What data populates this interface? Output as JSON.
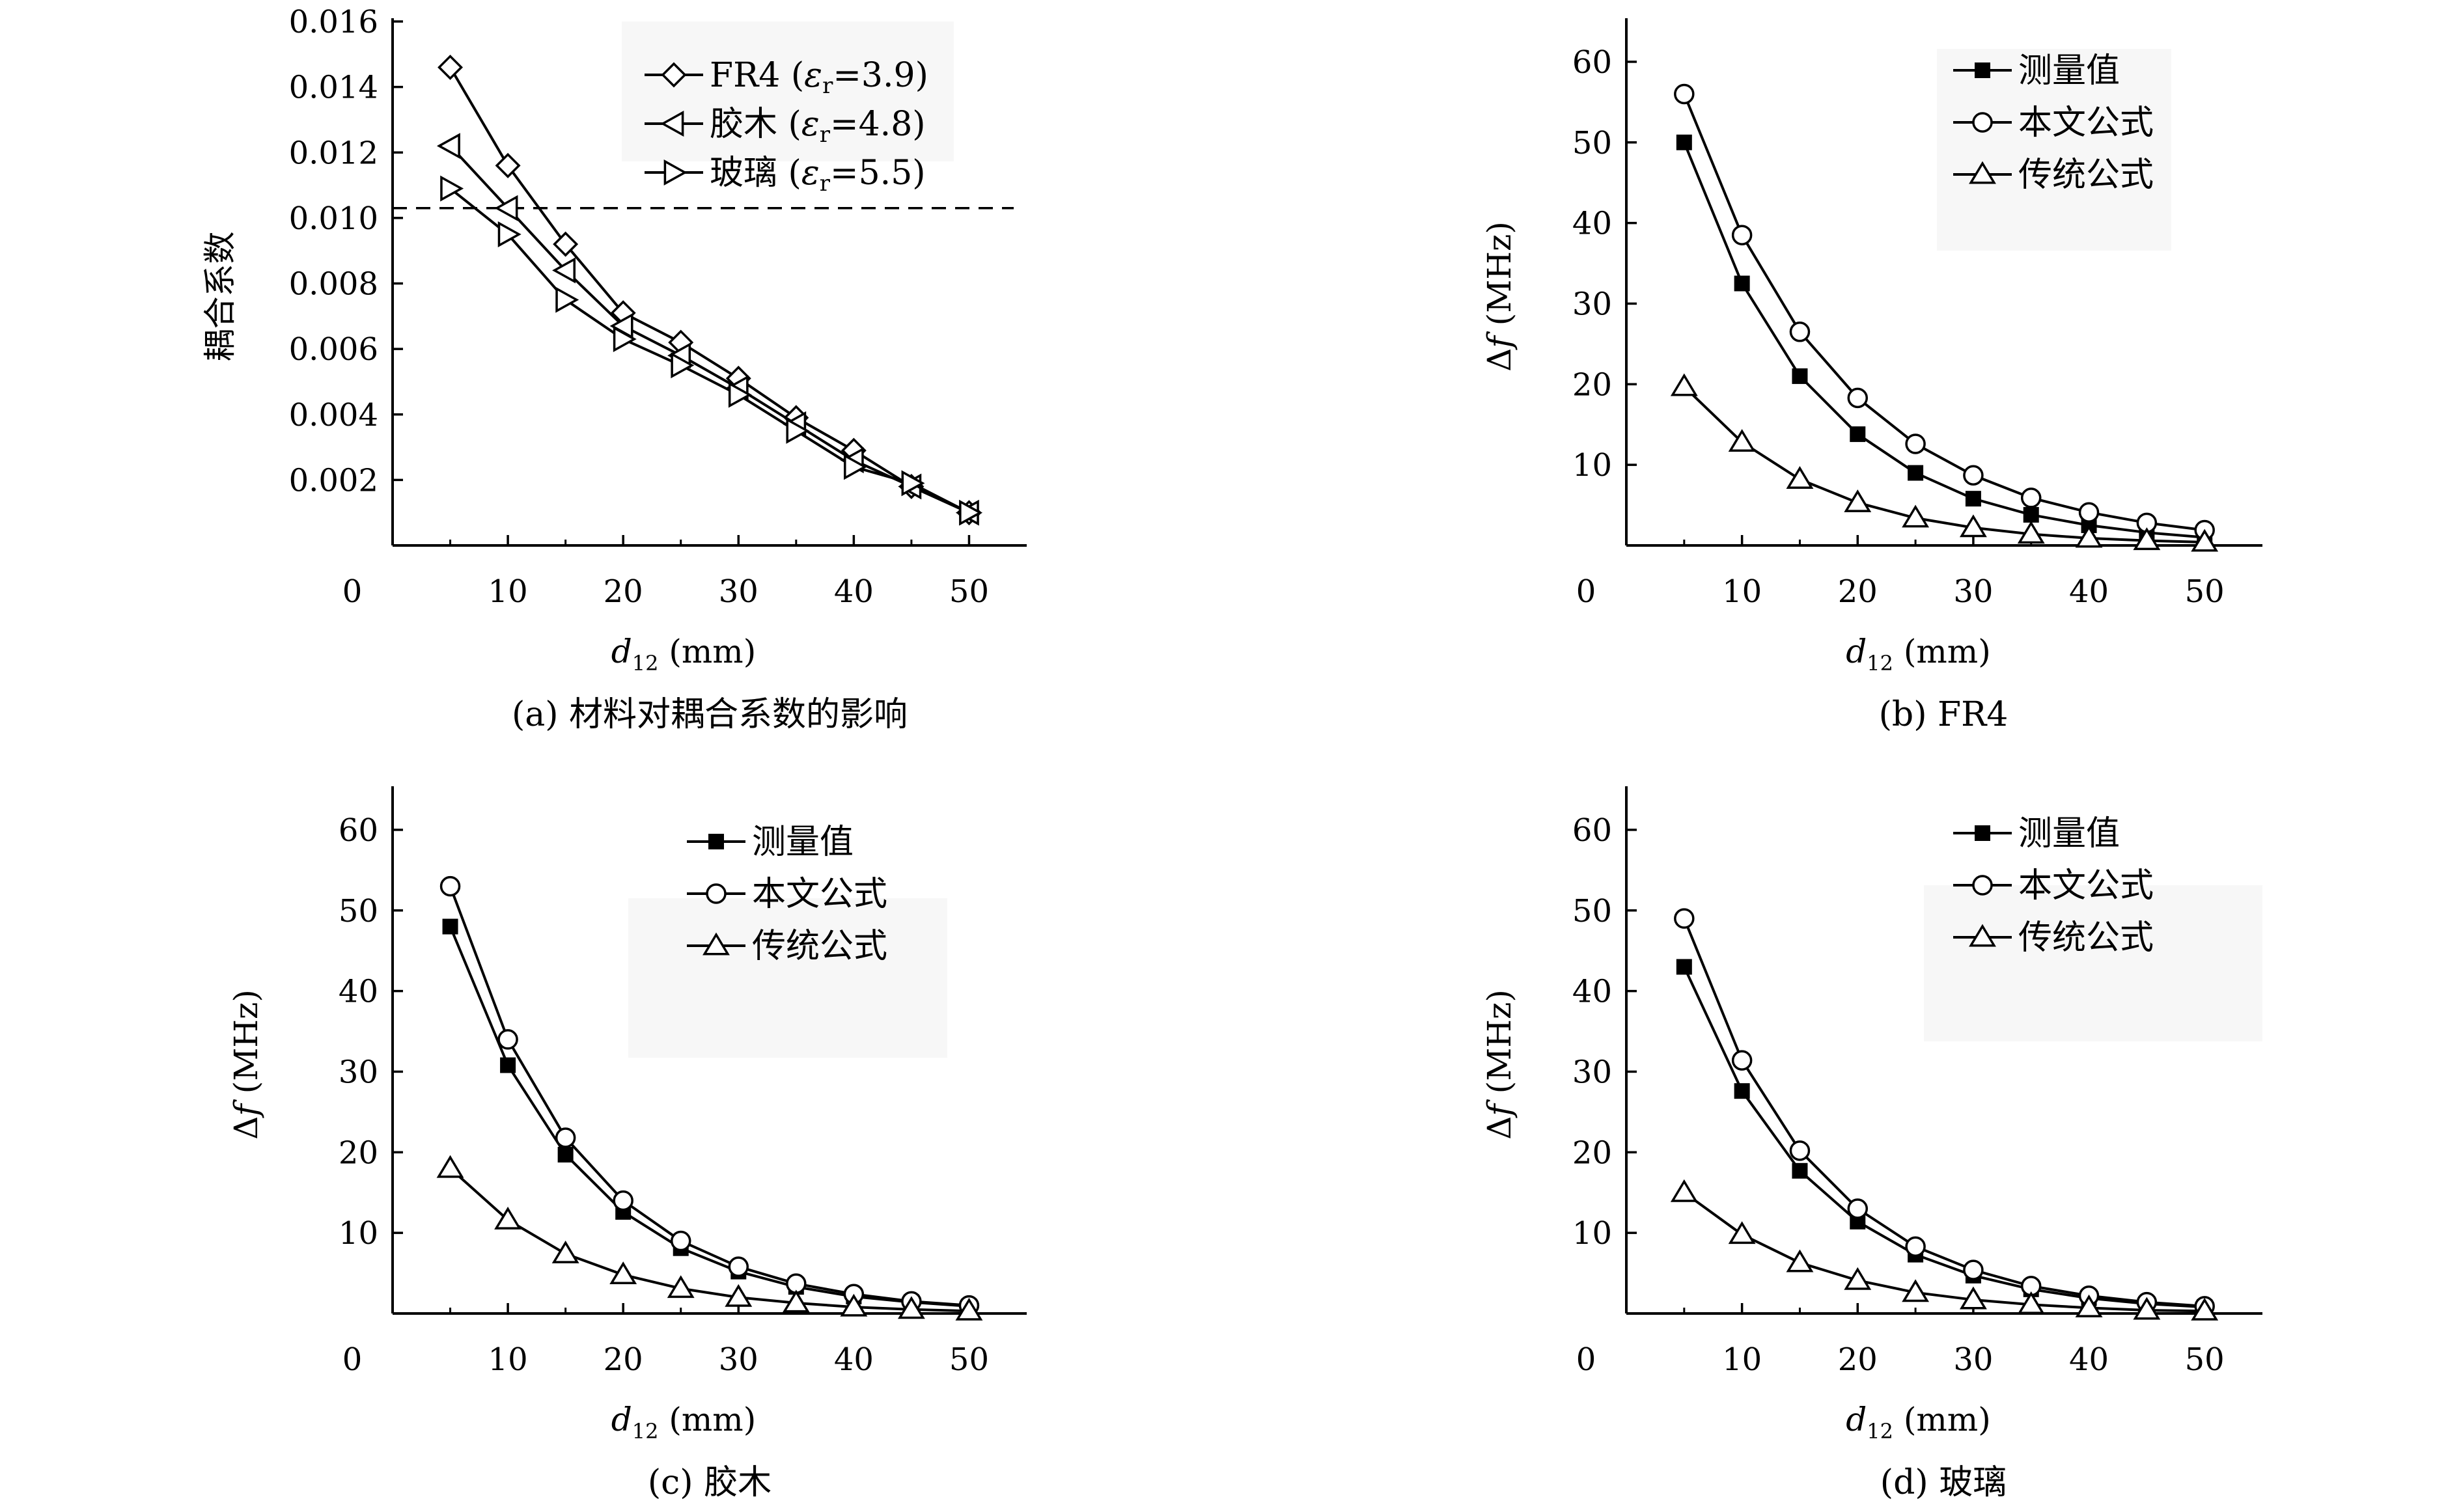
{
  "figure": {
    "colors": {
      "ink": "#000000",
      "legend_bg": "#f7f7f7",
      "background": "#ffffff"
    }
  },
  "chart_data": [
    {
      "type": "line",
      "caption": "(a) 材料对耦合系数的影响",
      "xlabel_main": "d",
      "xlabel_sub": "12",
      "xlabel_unit": "(mm)",
      "ylabel": "耦合系数",
      "x": [
        5,
        10,
        15,
        20,
        25,
        30,
        35,
        40,
        45,
        50
      ],
      "xlim": [
        0,
        55
      ],
      "ylim": [
        0,
        0.016
      ],
      "xticks": [
        "0",
        "10",
        "20",
        "30",
        "40",
        "50"
      ],
      "yticks": [
        "0.002",
        "0.004",
        "0.006",
        "0.008",
        "0.010",
        "0.012",
        "0.014",
        "0.016"
      ],
      "reference_line": {
        "y": 0.0103,
        "style": "dashed"
      },
      "legend": "top-right",
      "series": [
        {
          "name": "FR4",
          "eps": "3.9",
          "marker": "diamond",
          "values": [
            0.0146,
            0.0116,
            0.0092,
            0.0071,
            0.0062,
            0.0051,
            0.0039,
            0.0029,
            0.0018,
            0.001
          ]
        },
        {
          "name": "胶木",
          "eps": "4.8",
          "marker": "triangle-left",
          "values": [
            0.0122,
            0.0103,
            0.0084,
            0.0067,
            0.0058,
            0.0048,
            0.0037,
            0.0026,
            0.0018,
            0.001
          ]
        },
        {
          "name": "玻璃",
          "eps": "5.5",
          "marker": "triangle-right",
          "values": [
            0.0109,
            0.0095,
            0.0075,
            0.0063,
            0.0055,
            0.0046,
            0.0035,
            0.0024,
            0.0019,
            0.001
          ]
        }
      ]
    },
    {
      "type": "line",
      "caption": "(b) FR4",
      "xlabel_main": "d",
      "xlabel_sub": "12",
      "xlabel_unit": "(mm)",
      "ylabel_delta": "Δ",
      "ylabel_var": "f",
      "ylabel_unit": "(MHz)",
      "x": [
        5,
        10,
        15,
        20,
        25,
        30,
        35,
        40,
        45,
        50
      ],
      "xlim": [
        0,
        55
      ],
      "ylim": [
        0,
        65
      ],
      "xticks": [
        "0",
        "10",
        "20",
        "30",
        "40",
        "50"
      ],
      "yticks": [
        "10",
        "20",
        "30",
        "40",
        "50",
        "60"
      ],
      "legend": "top-right",
      "series": [
        {
          "name": "测量值",
          "marker": "square-filled",
          "values": [
            50,
            32.5,
            21,
            13.8,
            9,
            5.8,
            3.8,
            2.5,
            1.6,
            1.0
          ]
        },
        {
          "name": "本文公式",
          "marker": "circle",
          "values": [
            56,
            38.5,
            26.5,
            18.3,
            12.6,
            8.7,
            5.9,
            4.1,
            2.8,
            1.9
          ]
        },
        {
          "name": "传统公式",
          "marker": "triangle",
          "values": [
            19.7,
            12.8,
            8.2,
            5.3,
            3.4,
            2.2,
            1.4,
            0.9,
            0.6,
            0.4
          ]
        }
      ]
    },
    {
      "type": "line",
      "caption": "(c) 胶木",
      "xlabel_main": "d",
      "xlabel_sub": "12",
      "xlabel_unit": "(mm)",
      "ylabel_delta": "Δ",
      "ylabel_var": "f",
      "ylabel_unit": "(MHz)",
      "x": [
        5,
        10,
        15,
        20,
        25,
        30,
        35,
        40,
        45,
        50
      ],
      "xlim": [
        0,
        55
      ],
      "ylim": [
        0,
        65
      ],
      "xticks": [
        "0",
        "10",
        "20",
        "30",
        "40",
        "50"
      ],
      "yticks": [
        "10",
        "20",
        "30",
        "40",
        "50",
        "60"
      ],
      "legend": "top-right",
      "series": [
        {
          "name": "测量值",
          "marker": "square-filled",
          "values": [
            48,
            30.8,
            19.7,
            12.6,
            8.1,
            5.2,
            3.3,
            2.1,
            1.4,
            0.9
          ]
        },
        {
          "name": "本文公式",
          "marker": "circle",
          "values": [
            53,
            34,
            21.8,
            14,
            9,
            5.8,
            3.7,
            2.4,
            1.5,
            1.0
          ]
        },
        {
          "name": "传统公式",
          "marker": "triangle",
          "values": [
            18,
            11.6,
            7.4,
            4.8,
            3.1,
            2.0,
            1.3,
            0.8,
            0.5,
            0.3
          ]
        }
      ]
    },
    {
      "type": "line",
      "caption": "(d) 玻璃",
      "xlabel_main": "d",
      "xlabel_sub": "12",
      "xlabel_unit": "(mm)",
      "ylabel_delta": "Δ",
      "ylabel_var": "f",
      "ylabel_unit": "(MHz)",
      "x": [
        5,
        10,
        15,
        20,
        25,
        30,
        35,
        40,
        45,
        50
      ],
      "xlim": [
        0,
        55
      ],
      "ylim": [
        0,
        65
      ],
      "xticks": [
        "0",
        "10",
        "20",
        "30",
        "40",
        "50"
      ],
      "yticks": [
        "10",
        "20",
        "30",
        "40",
        "50",
        "60"
      ],
      "legend": "top-right",
      "series": [
        {
          "name": "测量值",
          "marker": "square-filled",
          "values": [
            43,
            27.6,
            17.7,
            11.4,
            7.3,
            4.7,
            3.0,
            1.9,
            1.2,
            0.8
          ]
        },
        {
          "name": "本文公式",
          "marker": "circle",
          "values": [
            49,
            31.4,
            20.2,
            13,
            8.3,
            5.4,
            3.4,
            2.2,
            1.4,
            0.9
          ]
        },
        {
          "name": "传统公式",
          "marker": "triangle",
          "values": [
            15,
            9.8,
            6.3,
            4.1,
            2.6,
            1.7,
            1.1,
            0.7,
            0.4,
            0.3
          ]
        }
      ]
    }
  ]
}
